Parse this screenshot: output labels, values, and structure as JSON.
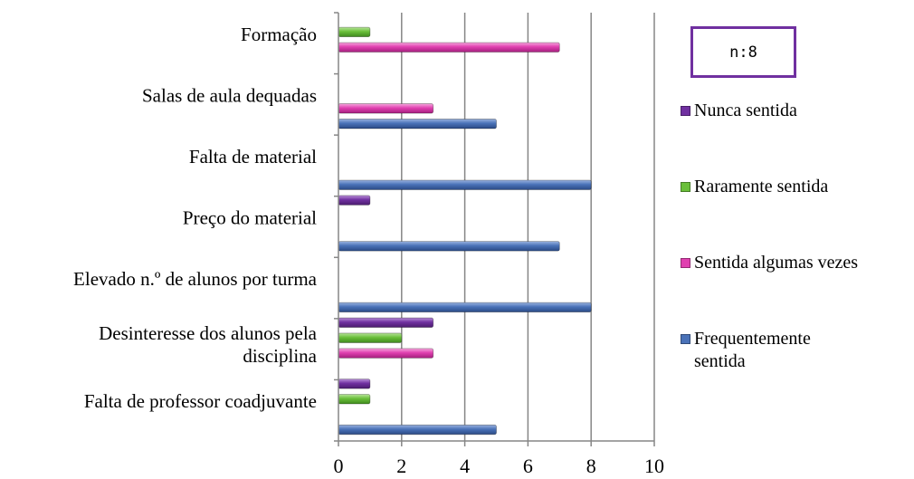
{
  "note": "n:8",
  "chart_data": {
    "type": "bar",
    "orientation": "horizontal",
    "categories": [
      "Formação",
      "Salas de aula dequadas",
      "Falta de material",
      "Preço do material",
      "Elevado n.º de alunos por turma",
      "Desinteresse dos alunos pela disciplina",
      "Falta de professor coadjuvante"
    ],
    "category_label_lines": [
      [
        "Formação"
      ],
      [
        "Salas de aula dequadas"
      ],
      [
        "Falta de material"
      ],
      [
        "Preço do material"
      ],
      [
        "Elevado n.º de alunos por turma"
      ],
      [
        "Desinteresse dos alunos pela",
        "disciplina"
      ],
      [
        "Falta de professor coadjuvante"
      ]
    ],
    "series": [
      {
        "name": "Nunca sentida",
        "color": "#7030a0",
        "values": [
          0,
          0,
          0,
          1,
          0,
          3,
          1
        ]
      },
      {
        "name": "Raramente sentida",
        "color": "#6abf3a",
        "values": [
          1,
          0,
          0,
          0,
          0,
          2,
          1
        ]
      },
      {
        "name": "Sentida algumas vezes",
        "color": "#e040b0",
        "values": [
          7,
          3,
          0,
          0,
          0,
          3,
          0
        ]
      },
      {
        "name": "Frequentemente sentida",
        "color": "#4a72b8",
        "values": [
          0,
          5,
          8,
          7,
          8,
          0,
          5
        ]
      }
    ],
    "legend_order": [
      "Nunca sentida",
      "Raramente sentida",
      "Sentida algumas vezes",
      "Frequentemente sentida"
    ],
    "legend_lines": {
      "Nunca sentida": [
        "Nunca sentida"
      ],
      "Raramente sentida": [
        "Raramente sentida"
      ],
      "Sentida algumas vezes": [
        "Sentida algumas vezes"
      ],
      "Frequentemente sentida": [
        "Frequentemente",
        "sentida"
      ]
    },
    "xlim": [
      0,
      10
    ],
    "xticks": [
      0,
      2,
      4,
      6,
      8,
      10
    ],
    "grid": true,
    "legend_position": "right"
  }
}
